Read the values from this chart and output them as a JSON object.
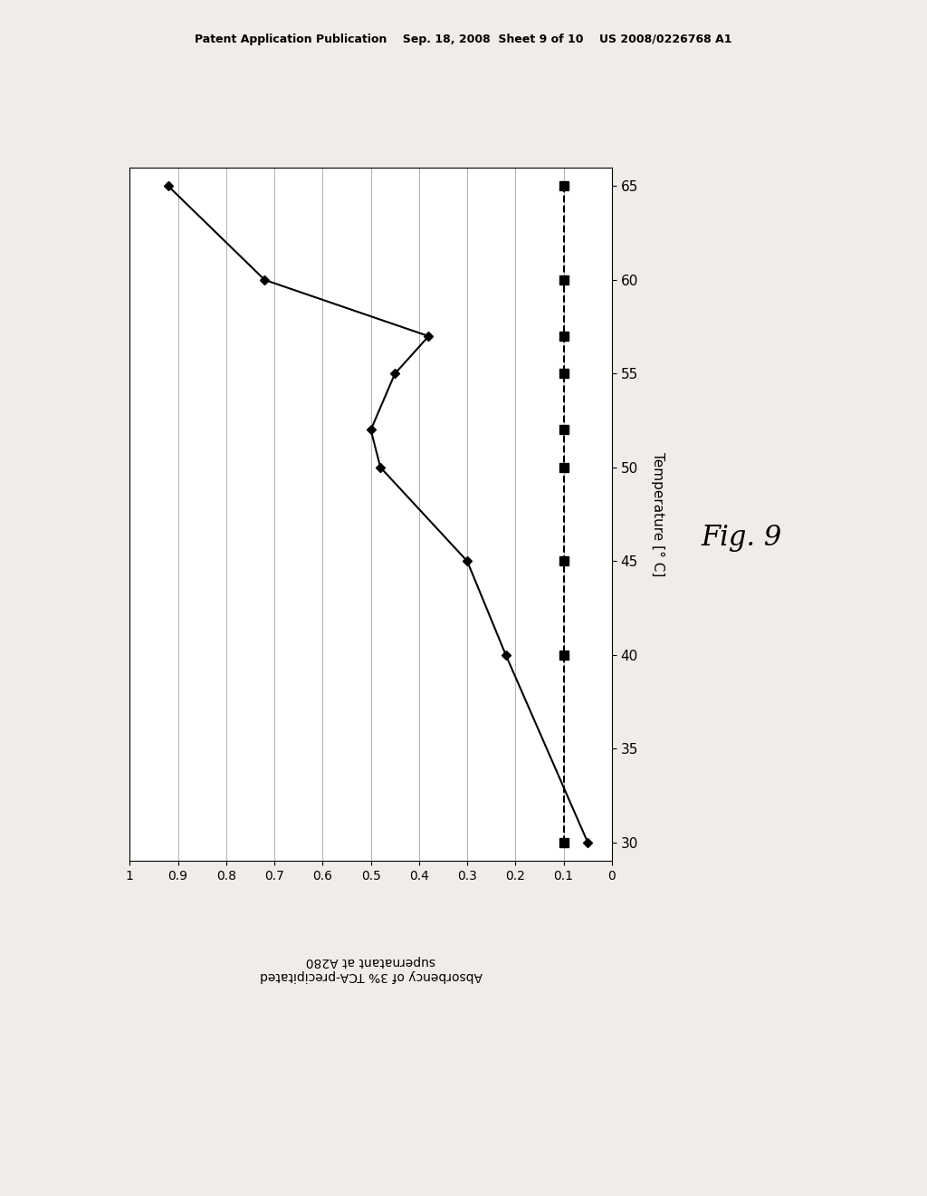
{
  "header_text": "Patent Application Publication    Sep. 18, 2008  Sheet 9 of 10    US 2008/0226768 A1",
  "fig_label": "Fig. 9",
  "ylabel": "Temperature [° C]",
  "xlabel_rotated": "Absorbency of 3% TCA-precipitated\nsupernatant at A280",
  "temp_values": [
    30,
    40,
    45,
    50,
    52,
    55,
    57,
    60,
    65
  ],
  "solid_absorbency": [
    0.05,
    0.22,
    0.3,
    0.48,
    0.5,
    0.45,
    0.38,
    0.72,
    0.92
  ],
  "dashed_absorbency": [
    0.1,
    0.1,
    0.1,
    0.1,
    0.1,
    0.1,
    0.1,
    0.1,
    0.1
  ],
  "dashed_temps": [
    30,
    40,
    45,
    50,
    52,
    55,
    57,
    60,
    65
  ],
  "ylim": [
    29,
    66
  ],
  "xlim": [
    0,
    1.0
  ],
  "yticks": [
    30,
    35,
    40,
    45,
    50,
    55,
    60,
    65
  ],
  "xticks": [
    0,
    0.1,
    0.2,
    0.3,
    0.4,
    0.5,
    0.6,
    0.7,
    0.8,
    0.9,
    1
  ],
  "bg_color": "#f0ede8",
  "plot_bg": "#ffffff",
  "line_color": "#000000"
}
